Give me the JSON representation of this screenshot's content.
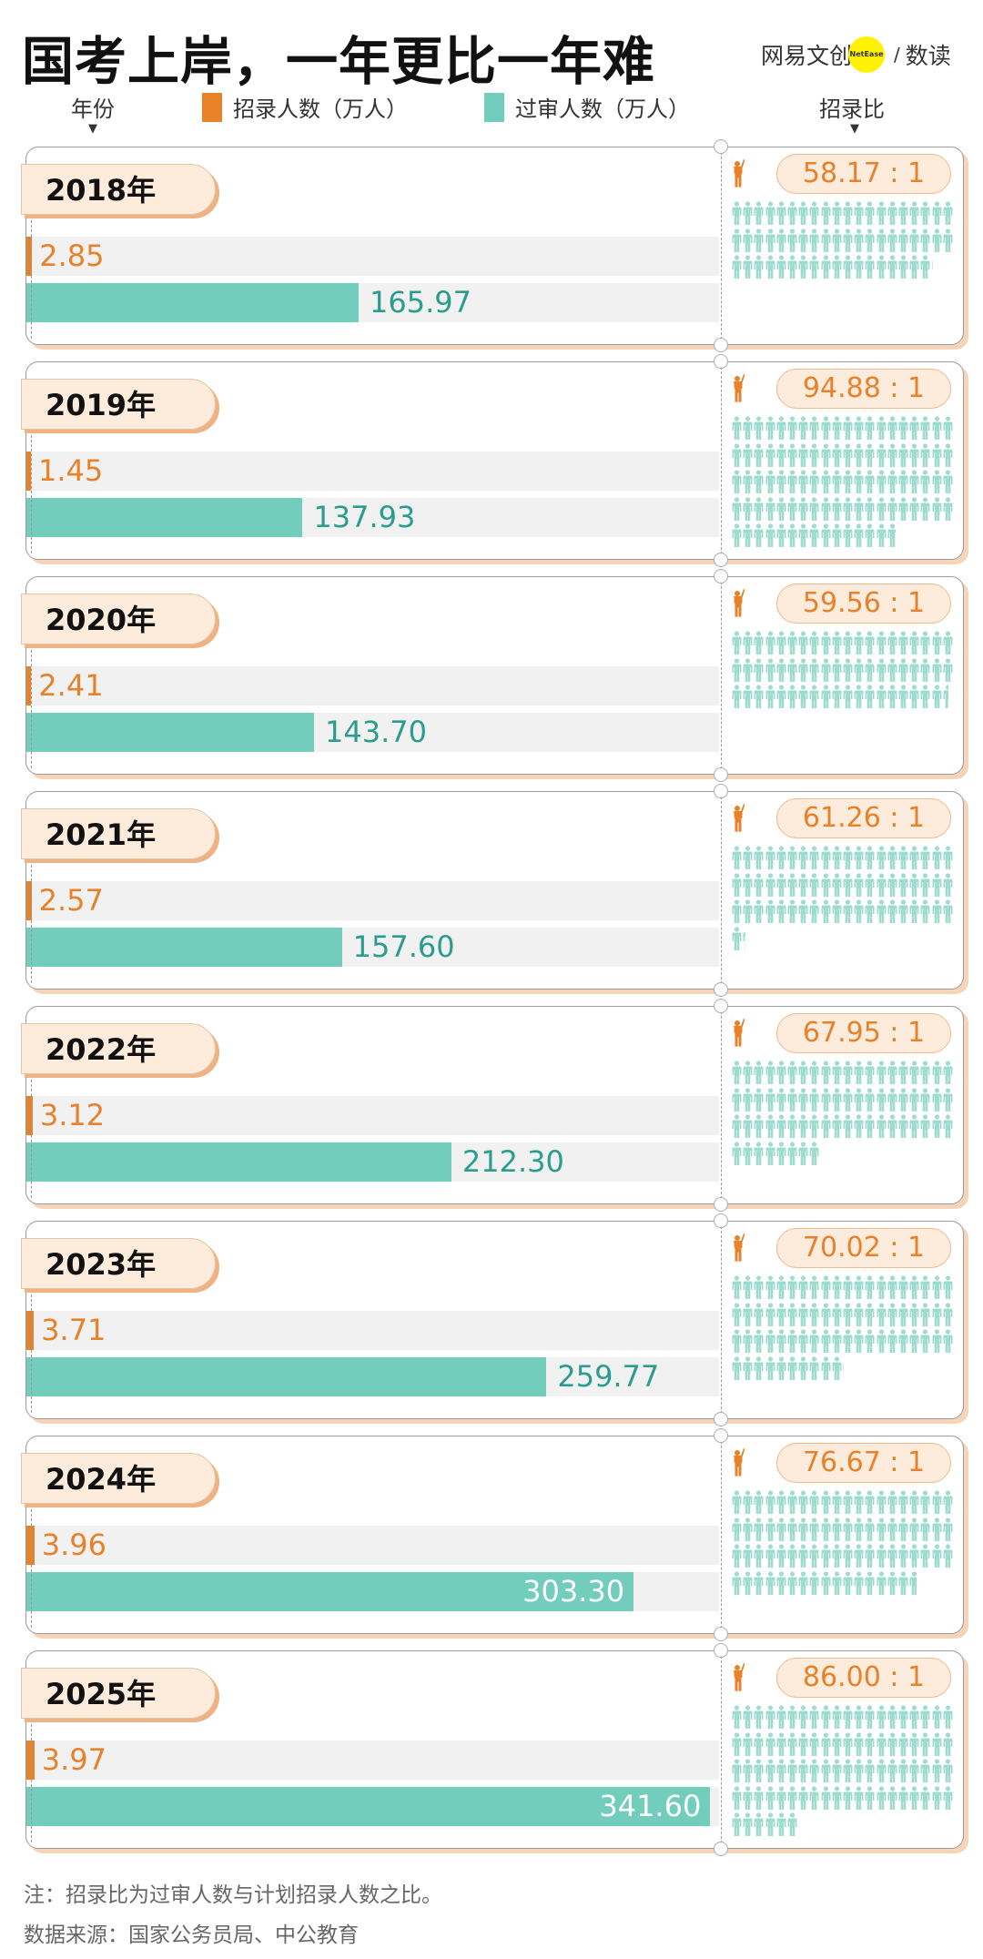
{
  "title": "国考上岸，一年更比一年难",
  "logo": {
    "brand": "网易文创",
    "badge": "NetEase",
    "sep": "/",
    "column": "数读"
  },
  "legend": {
    "year": "年份",
    "hires": "招录人数（万人）",
    "applicants": "过审人数（万人）",
    "ratio": "招录比"
  },
  "colors": {
    "hires": "#e8822a",
    "applicants": "#72cdbd",
    "applicants_text": "#2a9d8f",
    "people": "#9fdccf"
  },
  "chart_data": {
    "type": "bar",
    "title": "国考上岸，一年更比一年难",
    "categories": [
      "2018年",
      "2019年",
      "2020年",
      "2021年",
      "2022年",
      "2023年",
      "2024年",
      "2025年"
    ],
    "series": [
      {
        "name": "招录人数（万人）",
        "values": [
          2.85,
          1.45,
          2.41,
          2.57,
          3.12,
          3.71,
          3.96,
          3.97
        ]
      },
      {
        "name": "过审人数（万人）",
        "values": [
          165.97,
          137.93,
          143.7,
          157.6,
          212.3,
          259.77,
          303.3,
          341.6
        ]
      }
    ],
    "value_labels": {
      "hires": [
        "2.85",
        "1.45",
        "2.41",
        "2.57",
        "3.12",
        "3.71",
        "3.96",
        "3.97"
      ],
      "applicants": [
        "165.97",
        "137.93",
        "143.70",
        "157.60",
        "212.30",
        "259.77",
        "303.30",
        "341.60"
      ]
    },
    "ratios": [
      58.17,
      94.88,
      59.56,
      61.26,
      67.95,
      70.02,
      76.67,
      86.0
    ],
    "ratio_labels": [
      "58.17 : 1",
      "94.88 : 1",
      "59.56 : 1",
      "61.26 : 1",
      "67.95 : 1",
      "70.02 : 1",
      "76.67 : 1",
      "86.00 : 1"
    ],
    "xlim": [
      0,
      346
    ]
  },
  "notes": {
    "note": "注：招录比为过审人数与计划招录人数之比。",
    "source": "数据来源：国家公务员局、中公教育"
  }
}
